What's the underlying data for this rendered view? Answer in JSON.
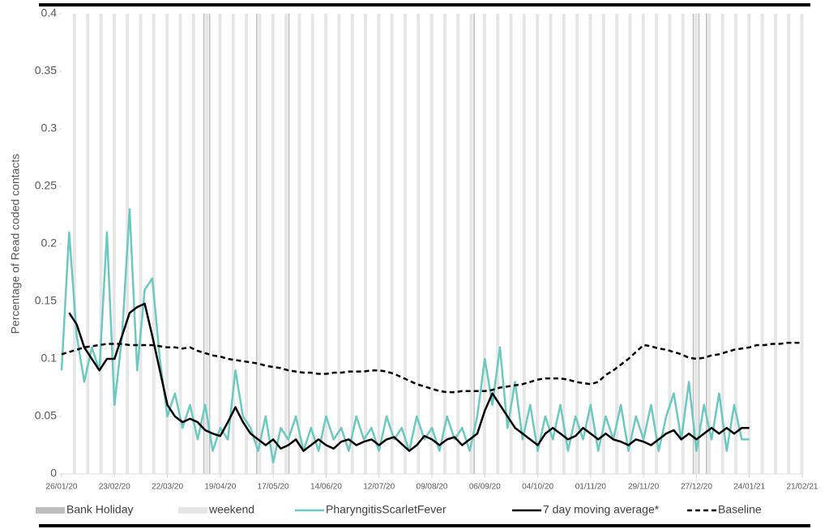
{
  "chart_data": {
    "type": "line",
    "y_label": "Percentage of Read coded contacts",
    "x": [
      "26/01/20",
      "30/01/20",
      "03/02/20",
      "07/02/20",
      "11/02/20",
      "15/02/20",
      "19/02/20",
      "23/02/20",
      "27/02/20",
      "02/03/20",
      "06/03/20",
      "10/03/20",
      "14/03/20",
      "18/03/20",
      "22/03/20",
      "26/03/20",
      "30/03/20",
      "03/04/20",
      "07/04/20",
      "11/04/20",
      "15/04/20",
      "19/04/20",
      "23/04/20",
      "27/04/20",
      "01/05/20",
      "05/05/20",
      "09/05/20",
      "13/05/20",
      "17/05/20",
      "21/05/20",
      "25/05/20",
      "29/05/20",
      "02/06/20",
      "06/06/20",
      "10/06/20",
      "14/06/20",
      "18/06/20",
      "22/06/20",
      "26/06/20",
      "30/06/20",
      "04/07/20",
      "08/07/20",
      "12/07/20",
      "16/07/20",
      "20/07/20",
      "24/07/20",
      "28/07/20",
      "01/08/20",
      "05/08/20",
      "09/08/20",
      "13/08/20",
      "17/08/20",
      "21/08/20",
      "25/08/20",
      "29/08/20",
      "02/09/20",
      "06/09/20",
      "10/09/20",
      "14/09/20",
      "18/09/20",
      "22/09/20",
      "26/09/20",
      "30/09/20",
      "04/10/20",
      "08/10/20",
      "12/10/20",
      "16/10/20",
      "20/10/20",
      "24/10/20",
      "28/10/20",
      "01/11/20",
      "05/11/20",
      "09/11/20",
      "13/11/20",
      "17/11/20",
      "21/11/20",
      "25/11/20",
      "29/11/20",
      "03/12/20",
      "07/12/20",
      "11/12/20",
      "15/12/20",
      "19/12/20",
      "23/12/20",
      "27/12/20",
      "31/12/20",
      "04/01/21",
      "08/01/21",
      "12/01/21",
      "16/01/21",
      "20/01/21",
      "24/01/21",
      "28/01/21",
      "01/02/21",
      "05/02/21",
      "09/02/21",
      "13/02/21",
      "17/02/21",
      "21/02/21"
    ],
    "bands": [
      {
        "name": "Bank Holiday",
        "color": "#bdbdbd",
        "days": 1,
        "dates": [
          "10/04/20",
          "13/04/20",
          "08/05/20",
          "25/05/20",
          "31/08/20",
          "25/12/20",
          "28/12/20",
          "01/01/21"
        ]
      },
      {
        "name": "weekend",
        "color": "#e6e6e6",
        "days": 2,
        "dates": [
          "01/02/20",
          "08/02/20",
          "15/02/20",
          "22/02/20",
          "29/02/20",
          "07/03/20",
          "14/03/20",
          "21/03/20",
          "28/03/20",
          "04/04/20",
          "11/04/20",
          "18/04/20",
          "25/04/20",
          "02/05/20",
          "09/05/20",
          "16/05/20",
          "23/05/20",
          "30/05/20",
          "06/06/20",
          "13/06/20",
          "20/06/20",
          "27/06/20",
          "04/07/20",
          "11/07/20",
          "18/07/20",
          "25/07/20",
          "01/08/20",
          "08/08/20",
          "15/08/20",
          "22/08/20",
          "29/08/20",
          "05/09/20",
          "12/09/20",
          "19/09/20",
          "26/09/20",
          "03/10/20",
          "10/10/20",
          "17/10/20",
          "24/10/20",
          "31/10/20",
          "07/11/20",
          "14/11/20",
          "21/11/20",
          "28/11/20",
          "05/12/20",
          "12/12/20",
          "19/12/20",
          "26/12/20",
          "02/01/21",
          "09/01/21",
          "16/01/21",
          "23/01/21",
          "30/01/21",
          "06/02/21",
          "13/02/21",
          "20/02/21"
        ]
      }
    ],
    "series": [
      {
        "name": "PharyngitisScarletFever",
        "color": "#6cc9c0",
        "width": 2.5,
        "dashed": false,
        "values": [
          0.09,
          0.21,
          0.12,
          0.08,
          0.11,
          0.09,
          0.21,
          0.06,
          0.12,
          0.23,
          0.09,
          0.16,
          0.17,
          0.1,
          0.05,
          0.07,
          0.04,
          0.06,
          0.03,
          0.06,
          0.02,
          0.04,
          0.03,
          0.09,
          0.05,
          0.04,
          0.02,
          0.05,
          0.01,
          0.04,
          0.03,
          0.05,
          0.02,
          0.04,
          0.02,
          0.05,
          0.03,
          0.04,
          0.02,
          0.05,
          0.03,
          0.04,
          0.02,
          0.05,
          0.03,
          0.04,
          0.02,
          0.05,
          0.03,
          0.04,
          0.02,
          0.05,
          0.03,
          0.04,
          0.02,
          0.05,
          0.1,
          0.06,
          0.11,
          0.04,
          0.08,
          0.03,
          0.06,
          0.02,
          0.05,
          0.03,
          0.06,
          0.02,
          0.05,
          0.03,
          0.06,
          0.02,
          0.05,
          0.03,
          0.06,
          0.02,
          0.05,
          0.03,
          0.06,
          0.02,
          0.05,
          0.07,
          0.03,
          0.08,
          0.02,
          0.06,
          0.03,
          0.07,
          0.02,
          0.06,
          0.03,
          0.03,
          null,
          null,
          null,
          null,
          null,
          null,
          null
        ]
      },
      {
        "name": "7 day moving average*",
        "color": "#000000",
        "width": 2.5,
        "dashed": false,
        "values": [
          null,
          0.14,
          0.13,
          0.11,
          0.1,
          0.09,
          0.1,
          0.1,
          0.12,
          0.14,
          0.145,
          0.148,
          0.12,
          0.09,
          0.06,
          0.05,
          0.045,
          0.048,
          0.045,
          0.038,
          0.035,
          0.033,
          0.045,
          0.058,
          0.045,
          0.035,
          0.03,
          0.025,
          0.03,
          0.022,
          0.025,
          0.03,
          0.02,
          0.025,
          0.03,
          0.025,
          0.022,
          0.028,
          0.03,
          0.025,
          0.028,
          0.03,
          0.025,
          0.03,
          0.032,
          0.026,
          0.02,
          0.025,
          0.033,
          0.03,
          0.025,
          0.03,
          0.032,
          0.025,
          0.03,
          0.035,
          0.055,
          0.07,
          0.06,
          0.05,
          0.04,
          0.035,
          0.03,
          0.025,
          0.035,
          0.04,
          0.035,
          0.03,
          0.033,
          0.04,
          0.035,
          0.03,
          0.035,
          0.03,
          0.028,
          0.025,
          0.03,
          0.028,
          0.025,
          0.03,
          0.035,
          0.038,
          0.03,
          0.035,
          0.03,
          0.035,
          0.04,
          0.035,
          0.04,
          0.035,
          0.04,
          0.04,
          null,
          null,
          null,
          null,
          null,
          null,
          null
        ]
      },
      {
        "name": "Baseline",
        "color": "#000000",
        "width": 2.5,
        "dashed": true,
        "values": [
          0.104,
          0.106,
          0.108,
          0.11,
          0.111,
          0.112,
          0.113,
          0.113,
          0.113,
          0.112,
          0.112,
          0.112,
          0.112,
          0.111,
          0.11,
          0.11,
          0.109,
          0.11,
          0.107,
          0.105,
          0.103,
          0.102,
          0.1,
          0.099,
          0.098,
          0.097,
          0.096,
          0.094,
          0.093,
          0.092,
          0.09,
          0.089,
          0.088,
          0.088,
          0.087,
          0.087,
          0.088,
          0.088,
          0.089,
          0.089,
          0.089,
          0.09,
          0.09,
          0.089,
          0.087,
          0.084,
          0.081,
          0.078,
          0.076,
          0.074,
          0.072,
          0.071,
          0.071,
          0.072,
          0.072,
          0.072,
          0.072,
          0.073,
          0.075,
          0.076,
          0.077,
          0.078,
          0.08,
          0.082,
          0.083,
          0.083,
          0.083,
          0.082,
          0.08,
          0.079,
          0.078,
          0.08,
          0.086,
          0.09,
          0.095,
          0.1,
          0.106,
          0.112,
          0.111,
          0.109,
          0.108,
          0.106,
          0.104,
          0.101,
          0.1,
          0.101,
          0.103,
          0.104,
          0.106,
          0.108,
          0.109,
          0.11,
          0.112,
          0.112,
          0.113,
          0.113,
          0.114,
          0.114,
          0.114
        ]
      }
    ],
    "xlim": [
      "26/01/20",
      "21/02/21"
    ],
    "xticks": [
      "26/01/20",
      "23/02/20",
      "22/03/20",
      "19/04/20",
      "17/05/20",
      "14/06/20",
      "12/07/20",
      "09/08/20",
      "06/09/20",
      "04/10/20",
      "01/11/20",
      "29/11/20",
      "27/12/20",
      "24/01/21",
      "21/02/21"
    ],
    "ylim": [
      0,
      0.4
    ],
    "yticks": [
      0,
      0.05,
      0.1,
      0.15,
      0.2,
      0.25,
      0.3,
      0.35,
      0.4
    ],
    "grid": false,
    "legend": "bottom"
  }
}
